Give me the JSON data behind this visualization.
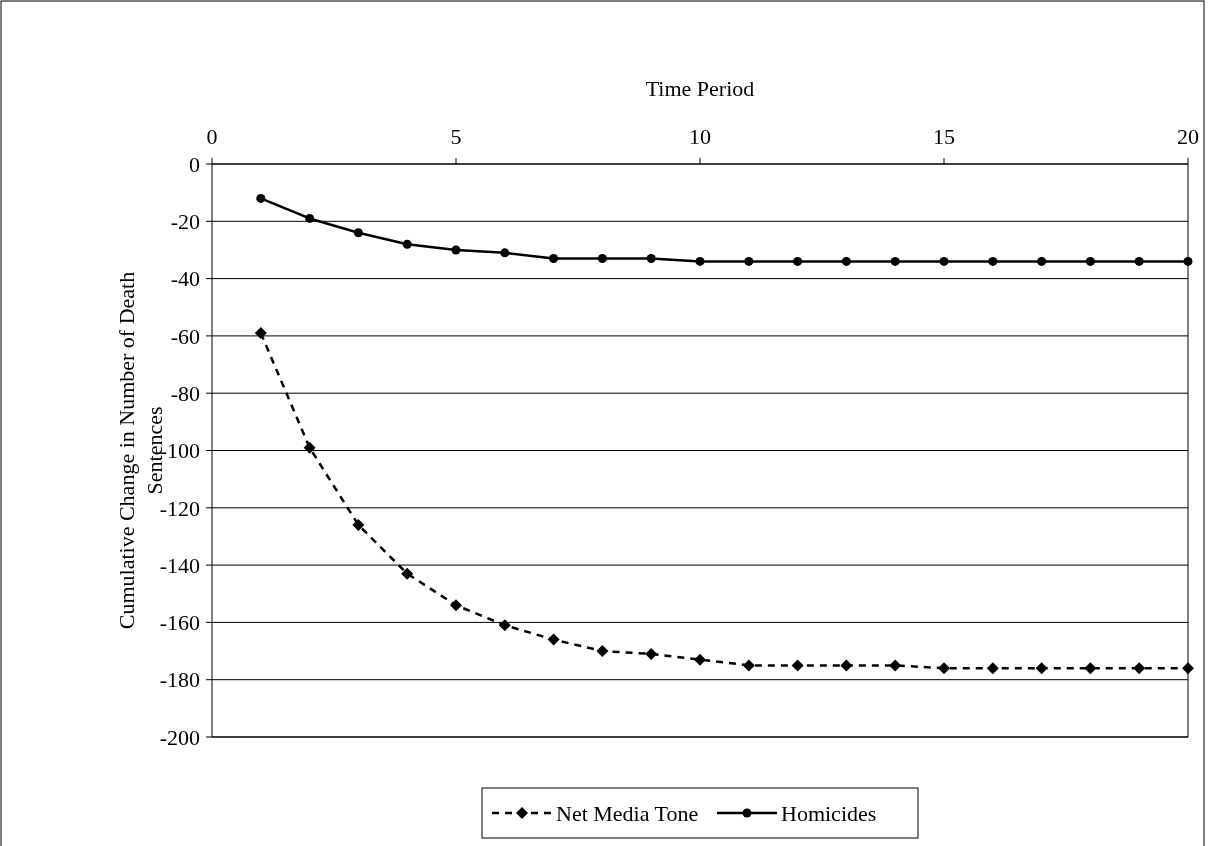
{
  "chart_data": {
    "type": "line",
    "xlabel": "Time Period",
    "ylabel": "Cumulative Change in Number of Death Sentences",
    "x": [
      1,
      2,
      3,
      4,
      5,
      6,
      7,
      8,
      9,
      10,
      11,
      12,
      13,
      14,
      15,
      16,
      17,
      18,
      19,
      20
    ],
    "xlim": [
      0,
      20
    ],
    "xticks": [
      0,
      5,
      10,
      15,
      20
    ],
    "ylim": [
      -200,
      0
    ],
    "yticks": [
      -200,
      -180,
      -160,
      -140,
      -120,
      -100,
      -80,
      -60,
      -40,
      -20,
      0
    ],
    "grid": "y",
    "legend": "bottom",
    "series": [
      {
        "name": "Net Media Tone",
        "color": "#000000",
        "marker": "diamond",
        "line_style": "dashed",
        "values": [
          -59,
          -99,
          -126,
          -143,
          -154,
          -161,
          -166,
          -170,
          -171,
          -173,
          -175,
          -175,
          -175,
          -175,
          -176,
          -176,
          -176,
          -176,
          -176,
          -176
        ]
      },
      {
        "name": "Homicides",
        "color": "#000000",
        "marker": "circle",
        "line_style": "solid",
        "values": [
          -12,
          -19,
          -24,
          -28,
          -30,
          -31,
          -33,
          -33,
          -33,
          -34,
          -34,
          -34,
          -34,
          -34,
          -34,
          -34,
          -34,
          -34,
          -34,
          -34
        ]
      }
    ]
  }
}
